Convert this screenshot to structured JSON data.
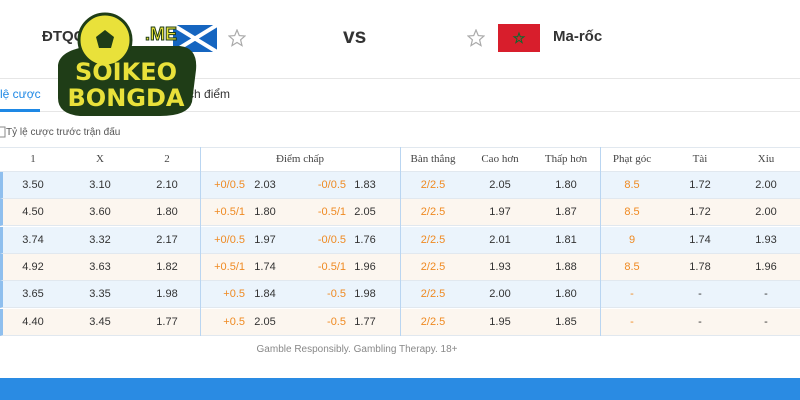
{
  "header": {
    "home": "ĐTQG",
    "vs": "vs",
    "away": "Ma-rốc"
  },
  "logo": {
    "line1": "SOIKEO",
    "line2": "BONGDA",
    "suffix": ".ME"
  },
  "tabs": [
    "lệ cược",
    "Bảng tích điểm"
  ],
  "section_label": "Tỷ lệ cược trước trận đấu",
  "table": {
    "columns": [
      "1",
      "X",
      "2",
      "Điểm chấp",
      "Bàn thắng",
      "Cao hơn",
      "Thấp hơn",
      "Phạt góc",
      "Tài",
      "Xỉu"
    ],
    "rows": [
      [
        "3.50",
        "3.10",
        "2.10",
        "+0/0.5",
        "2.03",
        "-0/0.5",
        "1.83",
        "2/2.5",
        "2.05",
        "1.80",
        "8.5",
        "1.72",
        "2.00"
      ],
      [
        "4.50",
        "3.60",
        "1.80",
        "+0.5/1",
        "1.80",
        "-0.5/1",
        "2.05",
        "2/2.5",
        "1.97",
        "1.87",
        "8.5",
        "1.72",
        "2.00"
      ],
      [
        "3.74",
        "3.32",
        "2.17",
        "+0/0.5",
        "1.97",
        "-0/0.5",
        "1.76",
        "2/2.5",
        "2.01",
        "1.81",
        "9",
        "1.74",
        "1.93"
      ],
      [
        "4.92",
        "3.63",
        "1.82",
        "+0.5/1",
        "1.74",
        "-0.5/1",
        "1.96",
        "2/2.5",
        "1.93",
        "1.88",
        "8.5",
        "1.78",
        "1.96"
      ],
      [
        "3.65",
        "3.35",
        "1.98",
        "+0.5",
        "1.84",
        "-0.5",
        "1.98",
        "2/2.5",
        "2.00",
        "1.80",
        "-",
        "-",
        "-"
      ],
      [
        "4.40",
        "3.45",
        "1.77",
        "+0.5",
        "2.05",
        "-0.5",
        "1.77",
        "2/2.5",
        "1.95",
        "1.85",
        "-",
        "-",
        "-"
      ]
    ]
  },
  "footer": "Gamble Responsibly. Gambling Therapy. 18+"
}
